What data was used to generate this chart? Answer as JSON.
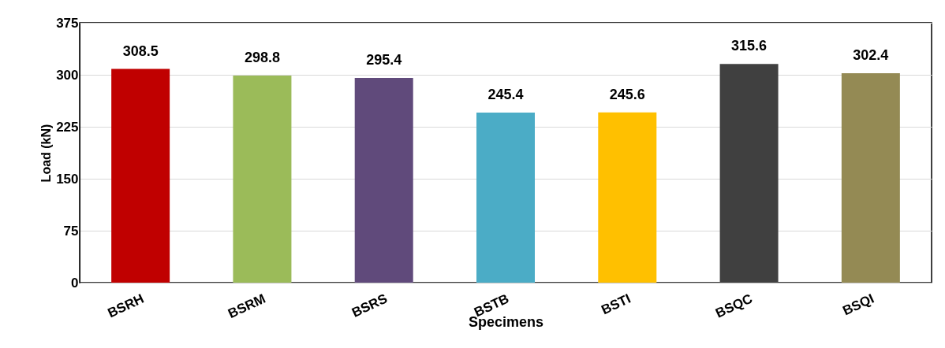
{
  "chart_data": {
    "type": "bar",
    "xlabel": "Specimens",
    "ylabel": "Load (kN)",
    "categories": [
      "BSRH",
      "BSRM",
      "BSRS",
      "BSTB",
      "BSTI",
      "BSQC",
      "BSQI"
    ],
    "values": [
      308.5,
      298.8,
      295.4,
      245.4,
      245.6,
      315.6,
      302.4
    ],
    "colors": [
      "#c00000",
      "#9bbb59",
      "#604a7b",
      "#4bacc6",
      "#ffc000",
      "#404040",
      "#948a54"
    ],
    "ylim": [
      0,
      375
    ],
    "yticks": [
      0,
      75,
      150,
      225,
      300,
      375
    ],
    "grid": "y",
    "data_labels": true
  }
}
